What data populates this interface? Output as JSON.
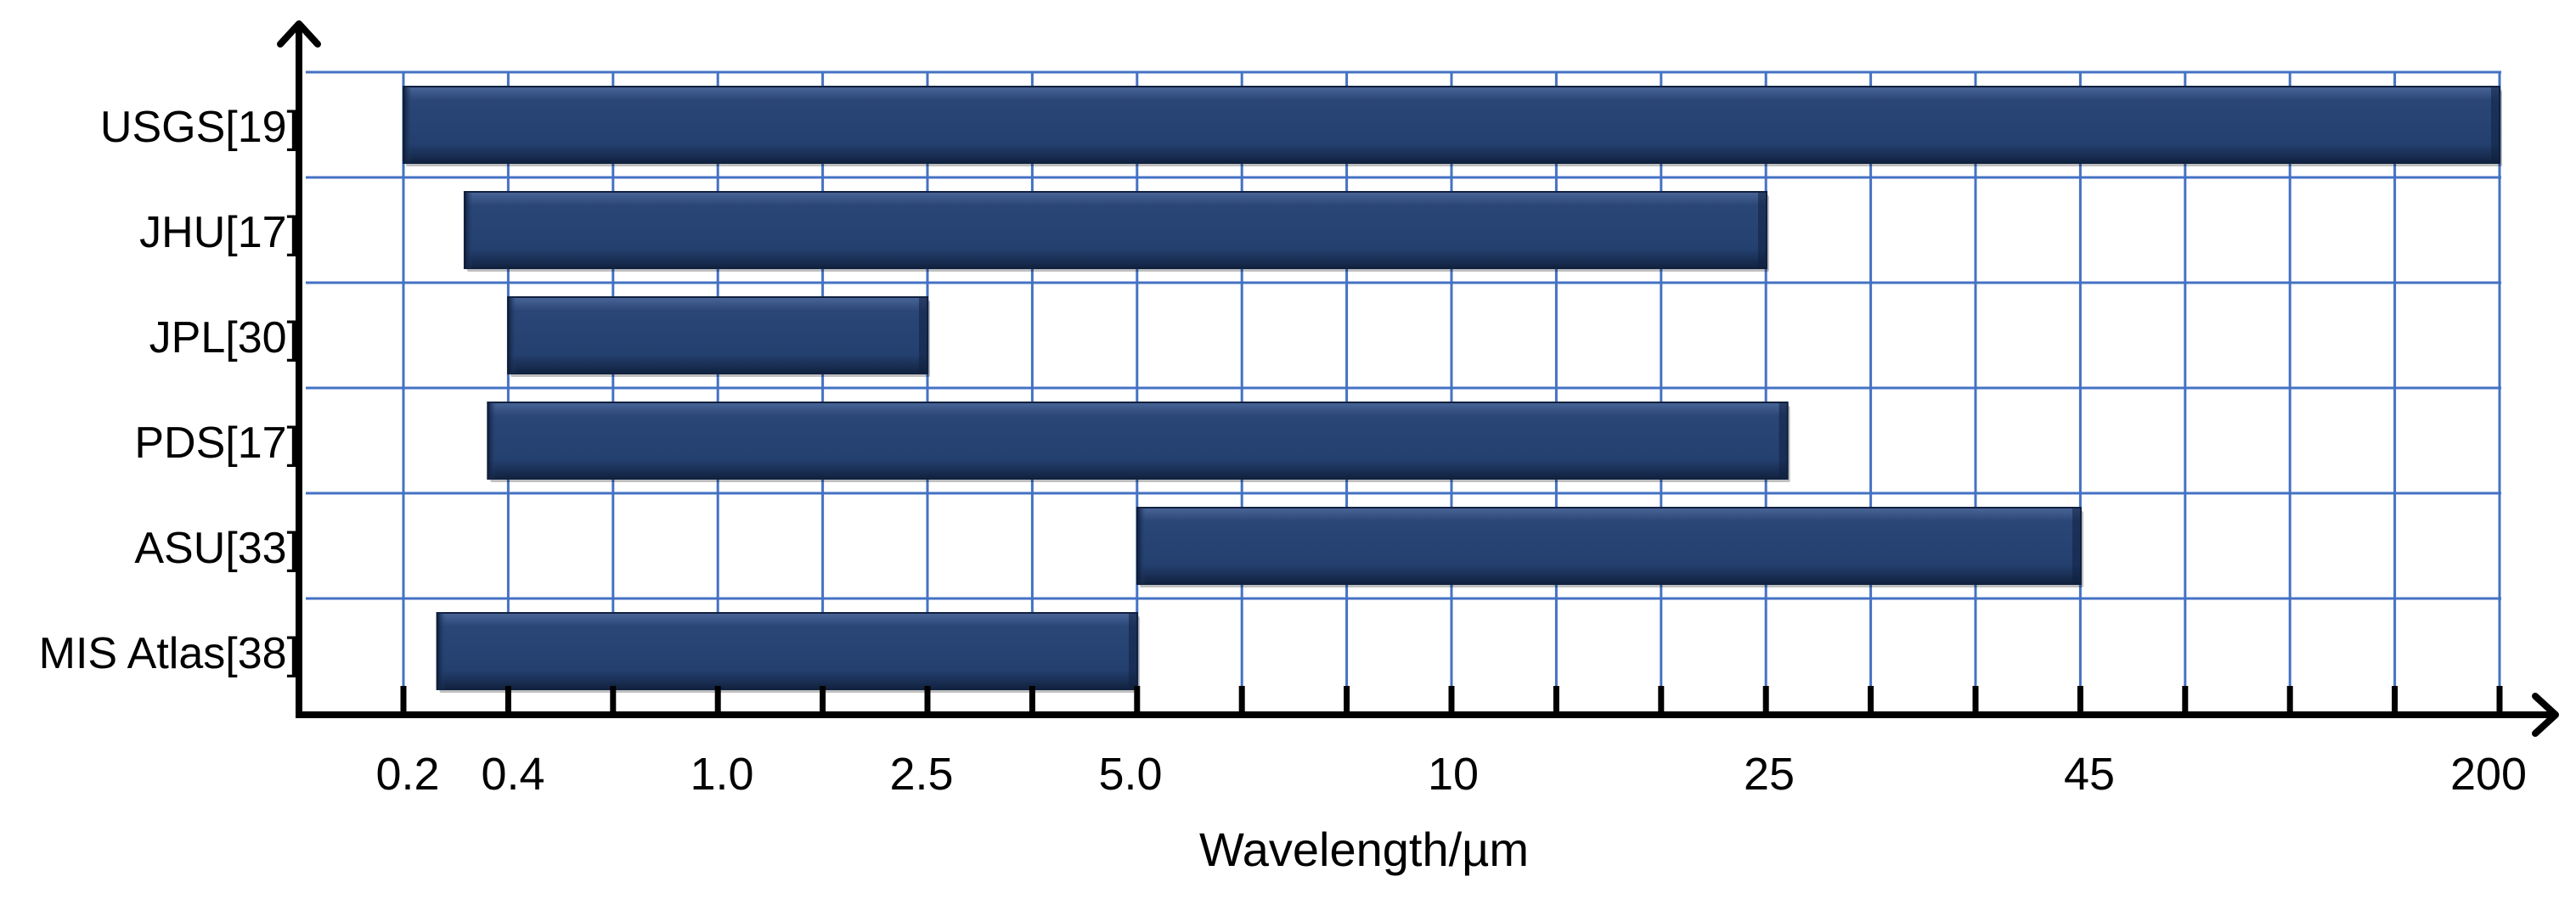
{
  "chart_data": {
    "type": "bar",
    "orientation": "horizontal-range",
    "title": "",
    "xlabel": "Wavelength/µm",
    "ylabel": "",
    "x_tick_labels": [
      "0.2",
      "0.4",
      "1.0",
      "2.5",
      "5.0",
      "10",
      "25",
      "45",
      "200"
    ],
    "categories": [
      "USGS[19]",
      "JHU[17]",
      "JPL[30]",
      "PDS[17]",
      "ASU[33]",
      "MIS Atlas[38]"
    ],
    "ranges_um": [
      [
        0.2,
        200
      ],
      [
        0.3,
        25
      ],
      [
        0.4,
        2.5
      ],
      [
        0.35,
        26
      ],
      [
        5.0,
        45
      ],
      [
        0.25,
        5.0
      ]
    ],
    "grid": true,
    "legend": "none",
    "colors": {
      "bar": "#24406f",
      "bar_highlight": "#4a6597",
      "bar_shadow": "#10213f",
      "grid": "#4472c4",
      "axis": "#000000"
    }
  }
}
